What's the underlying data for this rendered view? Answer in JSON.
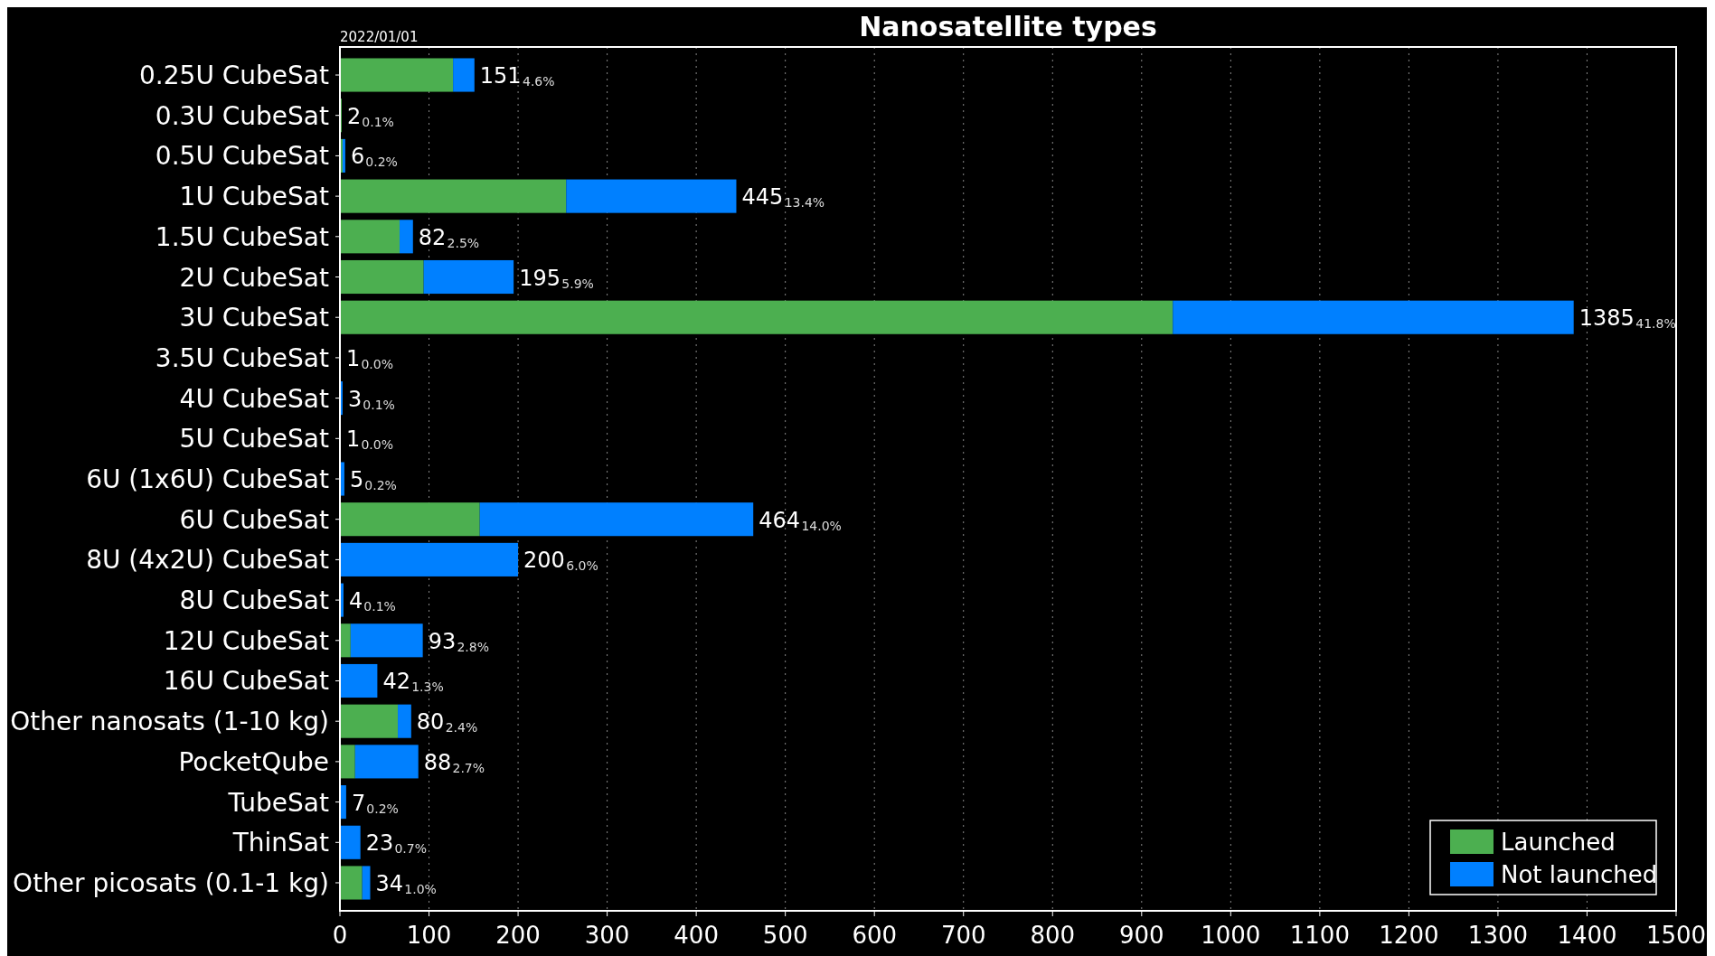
{
  "chart_data": {
    "type": "bar",
    "orientation": "horizontal",
    "stacked": true,
    "title": "Nanosatellite types",
    "categories": [
      "0.25U CubeSat",
      "0.3U CubeSat",
      "0.5U CubeSat",
      "1U CubeSat",
      "1.5U CubeSat",
      "2U CubeSat",
      "3U CubeSat",
      "3.5U CubeSat",
      "4U CubeSat",
      "5U CubeSat",
      "6U (1x6U) CubeSat",
      "6U CubeSat",
      "8U (4x2U) CubeSat",
      "8U CubeSat",
      "12U CubeSat",
      "16U CubeSat",
      "Other nanosats (1-10 kg)",
      "PocketQube",
      "TubeSat",
      "ThinSat",
      "Other picosats (0.1-1 kg)"
    ],
    "series": [
      {
        "name": "Launched",
        "color": "#4caf50",
        "values": [
          127,
          2,
          3,
          254,
          67,
          94,
          935,
          0,
          0,
          0,
          0,
          157,
          0,
          0,
          12,
          0,
          65,
          17,
          0,
          0,
          25
        ]
      },
      {
        "name": "Not launched",
        "color": "#0080ff",
        "values": [
          24,
          0,
          3,
          191,
          15,
          101,
          450,
          1,
          3,
          1,
          5,
          307,
          200,
          4,
          81,
          42,
          15,
          71,
          7,
          23,
          9
        ]
      }
    ],
    "totals": [
      "151",
      "2",
      "6",
      "445",
      "82",
      "195",
      "1385",
      "1",
      "3",
      "1",
      "5",
      "464",
      "200",
      "4",
      "93",
      "42",
      "80",
      "88",
      "7",
      "23",
      "34"
    ],
    "xlim": [
      0,
      1500
    ],
    "xticks": [
      0,
      100,
      200,
      300,
      400,
      500,
      600,
      700,
      800,
      900,
      1000,
      1100,
      1200,
      1300,
      1400,
      1500
    ],
    "grid": "x",
    "legend": "bottom right",
    "annotations": [
      "2022/01/01",
      "4.6%",
      "0.1%",
      "0.2%",
      "13.4%",
      "2.5%",
      "5.9%",
      "41.8%",
      "0.0%",
      "0.1%",
      "0.0%",
      "0.2%",
      "14.0%",
      "6.0%",
      "0.1%",
      "2.8%",
      "1.3%",
      "2.4%",
      "2.7%",
      "0.2%",
      "0.7%",
      "1.0%"
    ]
  }
}
